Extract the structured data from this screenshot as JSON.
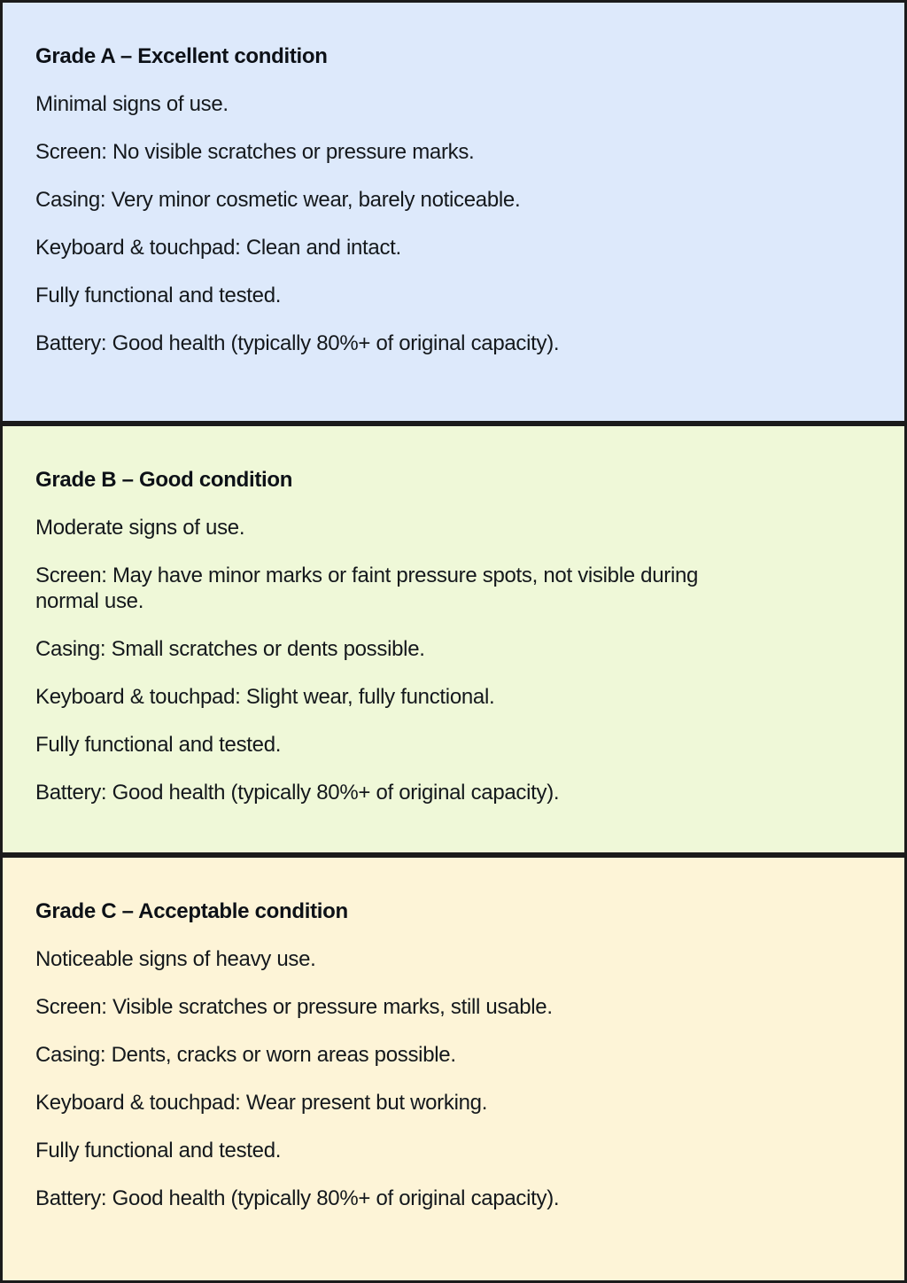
{
  "colors": {
    "grade_a_bg": "#dde9fb",
    "grade_b_bg": "#eff8d8",
    "grade_c_bg": "#fdf4d7",
    "panel_border": "#1b1b1b",
    "text": "#14181c"
  },
  "panels": [
    {
      "title": "Grade A – Excellent condition",
      "items": [
        "Minimal signs of use.",
        "Screen: No visible scratches or pressure marks.",
        "Casing: Very minor cosmetic wear, barely noticeable.",
        "Keyboard & touchpad: Clean and intact.",
        "Fully functional and tested.",
        "Battery: Good health (typically 80%+ of original capacity)."
      ]
    },
    {
      "title": "Grade B – Good condition",
      "items": [
        "Moderate signs of use.",
        "Screen: May have minor marks or faint pressure spots, not visible during\nnormal use.",
        "Casing: Small scratches or dents possible.",
        "Keyboard & touchpad: Slight wear, fully functional.",
        "Fully functional and tested.",
        "Battery: Good health (typically 80%+ of original capacity)."
      ]
    },
    {
      "title": "Grade C – Acceptable condition",
      "items": [
        "Noticeable signs of heavy use.",
        "Screen: Visible scratches or pressure marks, still usable.",
        "Casing: Dents, cracks or worn areas possible.",
        "Keyboard & touchpad: Wear present but working.",
        "Fully functional and tested.",
        "Battery: Good health (typically 80%+ of original capacity)."
      ]
    }
  ]
}
